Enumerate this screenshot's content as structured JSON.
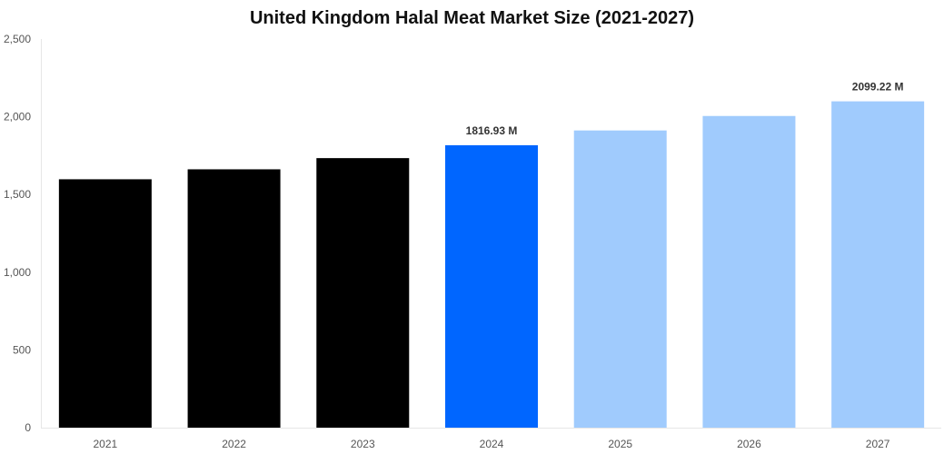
{
  "chart_data": {
    "type": "bar",
    "title": "United Kingdom Halal Meat Market Size (2021-2027)",
    "xlabel": "",
    "ylabel": "",
    "categories": [
      "2021",
      "2022",
      "2023",
      "2024",
      "2025",
      "2026",
      "2027"
    ],
    "values": [
      1598,
      1662,
      1734,
      1816.93,
      1912,
      2005,
      2099.22
    ],
    "bar_colors": [
      "#000000",
      "#000000",
      "#000000",
      "#0066ff",
      "#a0cbfd",
      "#a0cbfd",
      "#a0cbfd"
    ],
    "data_labels": [
      "",
      "",
      "",
      "1816.93 M",
      "",
      "",
      "2099.22 M"
    ],
    "yticks": [
      0,
      500,
      1000,
      1500,
      2000,
      2500
    ],
    "ytick_labels": [
      "0",
      "500",
      "1,000",
      "1,500",
      "2,000",
      "2,500"
    ],
    "ylim": [
      0,
      2500
    ],
    "grid": false,
    "legend": "none"
  }
}
